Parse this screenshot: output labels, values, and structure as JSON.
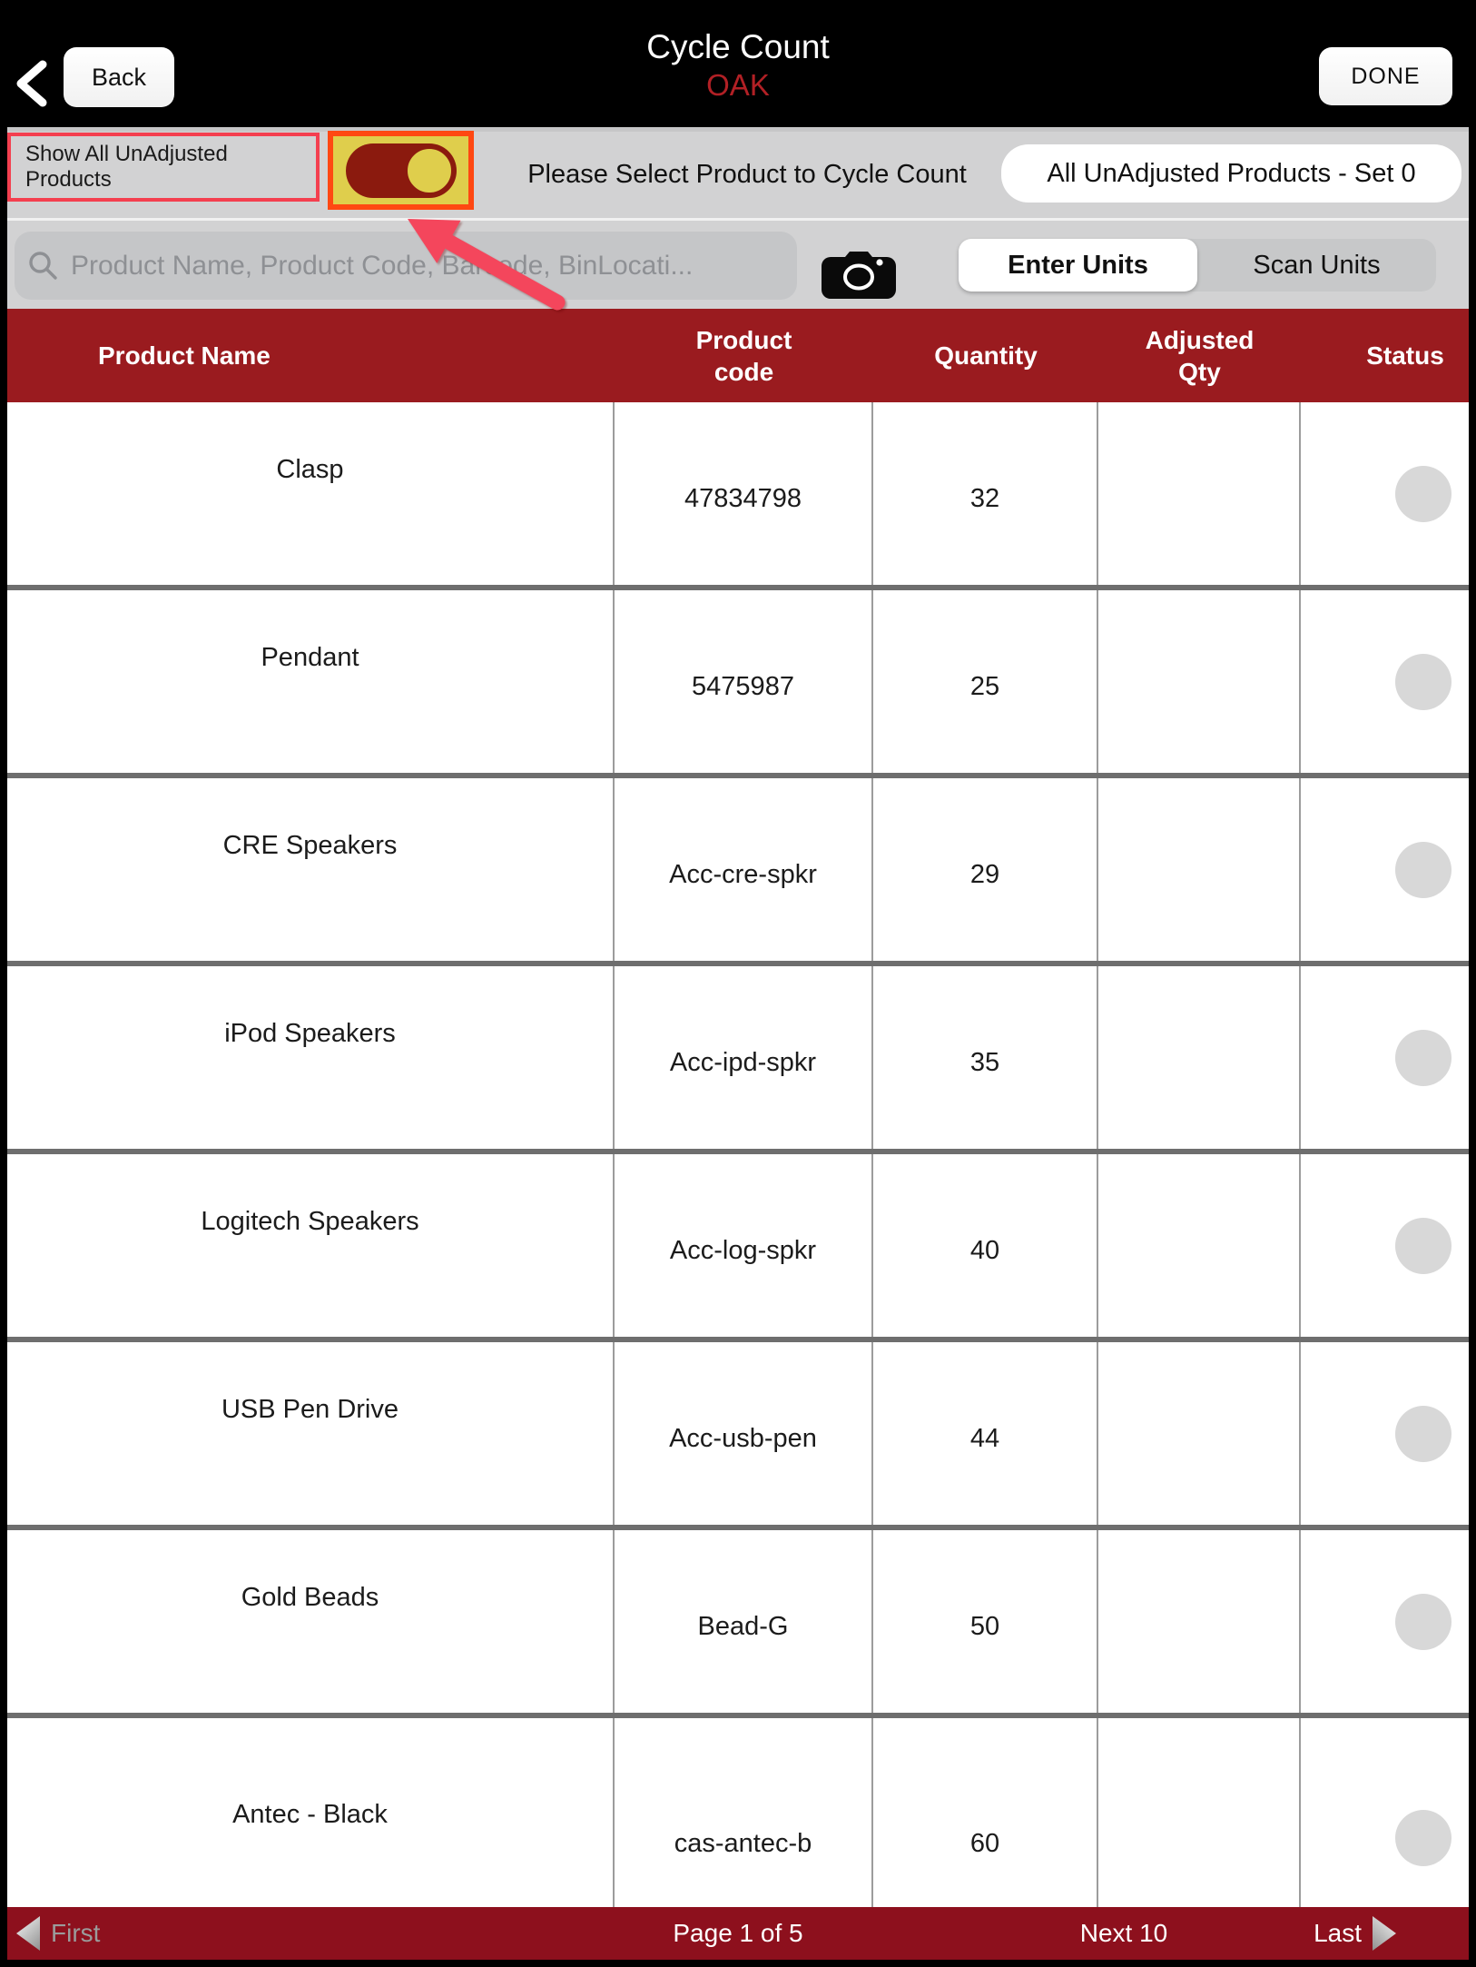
{
  "nav": {
    "back": "Back",
    "title": "Cycle Count",
    "location": "OAK",
    "done": "DONE"
  },
  "filter_bar": {
    "toggle_label": "Show All UnAdjusted Products",
    "toggle_state": "on",
    "instruction": "Please Select Product to Cycle Count",
    "set_button": "All UnAdjusted Products - Set 0"
  },
  "search_bar": {
    "placeholder": "Product Name, Product Code, Barcode, BinLocati...",
    "search_icon": "magnifier",
    "camera_icon": "camera",
    "enter_units": "Enter Units",
    "scan_units": "Scan Units",
    "selected_segment": "Enter Units"
  },
  "table": {
    "headers": {
      "name": "Product Name",
      "code": "Product\ncode",
      "quantity": "Quantity",
      "adjusted": "Adjusted\nQty",
      "status": "Status"
    },
    "rows": [
      {
        "name": "Clasp",
        "code": "47834798",
        "quantity": "32",
        "adjusted_qty": "",
        "status": ""
      },
      {
        "name": "Pendant",
        "code": "5475987",
        "quantity": "25",
        "adjusted_qty": "",
        "status": ""
      },
      {
        "name": "CRE Speakers",
        "code": "Acc-cre-spkr",
        "quantity": "29",
        "adjusted_qty": "",
        "status": ""
      },
      {
        "name": "iPod Speakers",
        "code": "Acc-ipd-spkr",
        "quantity": "35",
        "adjusted_qty": "",
        "status": ""
      },
      {
        "name": "Logitech Speakers",
        "code": "Acc-log-spkr",
        "quantity": "40",
        "adjusted_qty": "",
        "status": ""
      },
      {
        "name": "USB Pen Drive",
        "code": "Acc-usb-pen",
        "quantity": "44",
        "adjusted_qty": "",
        "status": ""
      },
      {
        "name": "Gold Beads",
        "code": "Bead-G",
        "quantity": "50",
        "adjusted_qty": "",
        "status": ""
      },
      {
        "name": "Antec - Black",
        "code": "cas-antec-b",
        "quantity": "60",
        "adjusted_qty": "",
        "status": ""
      }
    ]
  },
  "pagination": {
    "first": "First",
    "page_status": "Page 1 of 5",
    "next": "Next 10",
    "last": "Last"
  },
  "colors": {
    "header_red": "#9A1B1F",
    "footer_red": "#8D101D",
    "subtitle_red": "#B12025",
    "band_gray": "#D2D2D3",
    "annotation_red": "#F43F4F",
    "highlight_yellow": "#DFCE4C",
    "highlight_border_orange": "#FF4812",
    "toggle_track_red": "#8B1A0E",
    "arrow_red": "#F4465C",
    "status_circle_gray": "#D8D8D8"
  }
}
